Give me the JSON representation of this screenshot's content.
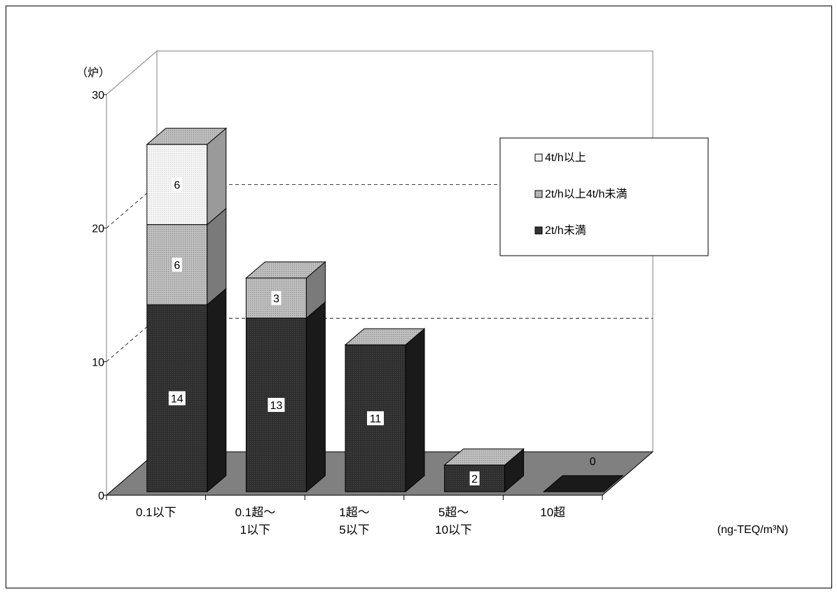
{
  "chart_data": {
    "type": "bar",
    "stacked": true,
    "three_d": true,
    "ylabel": "（炉）",
    "xlabel_unit": "(ng-TEQ/m³N)",
    "ylim": [
      0,
      30
    ],
    "yticks": [
      "0",
      "10",
      "20",
      "30"
    ],
    "categories": [
      [
        "0.1以下"
      ],
      [
        "0.1超～",
        "1以下"
      ],
      [
        "1超～",
        "5以下"
      ],
      [
        "5超～",
        "10以下"
      ],
      [
        "10超"
      ]
    ],
    "series": [
      {
        "name": "2t/h未満",
        "values": [
          14,
          13,
          11,
          2,
          0
        ],
        "color": "#2e2e2e"
      },
      {
        "name": "2t/h以上4t/h未満",
        "values": [
          6,
          3,
          0,
          0,
          0
        ],
        "color": "#bdbdbd"
      },
      {
        "name": "4t/h以上",
        "values": [
          6,
          0,
          0,
          0,
          0
        ],
        "color": "#f1f1f1"
      }
    ],
    "data_labels": [
      [
        "14",
        "13",
        "11",
        "2",
        "0"
      ],
      [
        "6",
        "3",
        "",
        "",
        ""
      ],
      [
        "6",
        "",
        "",
        "",
        ""
      ]
    ],
    "legend_order": [
      "4t/h以上",
      "2t/h以上4t/h未満",
      "2t/h未満"
    ],
    "legend_position": "top-right",
    "grid": "dashed major lines on back and side walls",
    "floor_color": "#808080"
  }
}
